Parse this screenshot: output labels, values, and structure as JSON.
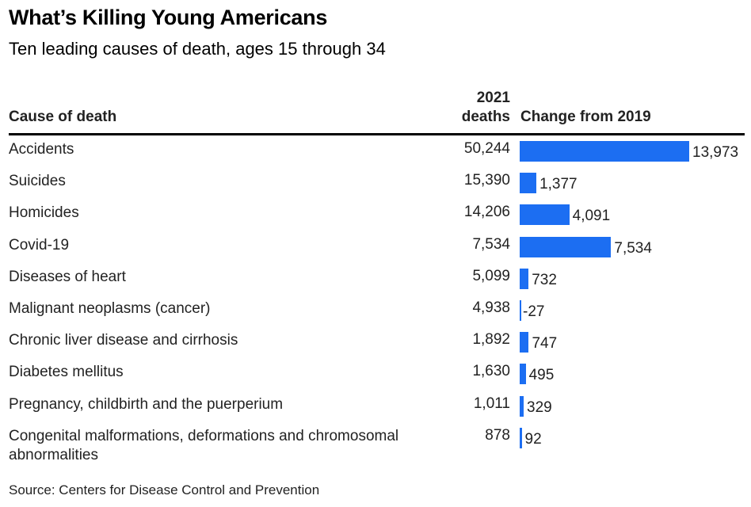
{
  "header": {
    "title": "What’s Killing Young Americans",
    "subtitle": "Ten leading causes of death, ages 15 through 34"
  },
  "columns": {
    "cause": "Cause of death",
    "deaths_line1": "2021",
    "deaths_line2": "deaths",
    "change": "Change from 2019"
  },
  "chart_data": {
    "type": "table",
    "title": "What’s Killing Young Americans",
    "subtitle": "Ten leading causes of death, ages 15 through 34",
    "columns": [
      "Cause of death",
      "2021 deaths",
      "Change from 2019"
    ],
    "rows": [
      {
        "cause": "Accidents",
        "deaths": "50,244",
        "change": 13973,
        "change_label": "13,973"
      },
      {
        "cause": "Suicides",
        "deaths": "15,390",
        "change": 1377,
        "change_label": "1,377"
      },
      {
        "cause": "Homicides",
        "deaths": "14,206",
        "change": 4091,
        "change_label": "4,091"
      },
      {
        "cause": "Covid-19",
        "deaths": "7,534",
        "change": 7534,
        "change_label": "7,534"
      },
      {
        "cause": "Diseases of heart",
        "deaths": "5,099",
        "change": 732,
        "change_label": "732"
      },
      {
        "cause": "Malignant neoplasms (cancer)",
        "deaths": "4,938",
        "change": -27,
        "change_label": "-27"
      },
      {
        "cause": "Chronic liver disease and cirrhosis",
        "deaths": "1,892",
        "change": 747,
        "change_label": "747"
      },
      {
        "cause": "Diabetes mellitus",
        "deaths": "1,630",
        "change": 495,
        "change_label": "495"
      },
      {
        "cause": "Pregnancy, childbirth and the puerperium",
        "deaths": "1,011",
        "change": 329,
        "change_label": "329"
      },
      {
        "cause": "Congenital malformations, deformations and chromosomal abnormalities",
        "deaths": "878",
        "change": 92,
        "change_label": "92"
      }
    ],
    "bar_color": "#1c6ef2"
  },
  "footer": {
    "source": "Source: Centers for Disease Control and Prevention"
  }
}
